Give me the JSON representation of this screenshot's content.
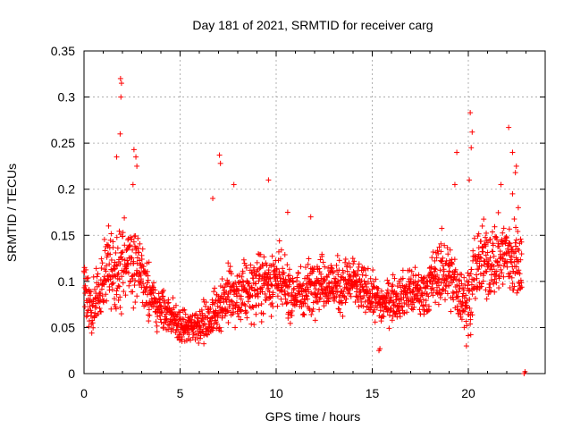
{
  "chart_data": {
    "type": "scatter",
    "title": "Day 181 of 2021, SRMTID for receiver carg",
    "xlabel": "GPS time / hours",
    "ylabel": "SRMTID / TECUs",
    "xlim": [
      0,
      24
    ],
    "ylim": [
      0,
      0.35
    ],
    "xticks": [
      0,
      5,
      10,
      15,
      20
    ],
    "xtick_labels": [
      "0",
      "5",
      "10",
      "15",
      "20"
    ],
    "yticks": [
      0,
      0.05,
      0.1,
      0.15,
      0.2,
      0.25,
      0.3,
      0.35
    ],
    "ytick_labels": [
      "0",
      "0.05",
      "0.1",
      "0.15",
      "0.2",
      "0.25",
      "0.3",
      "0.35"
    ],
    "grid": true,
    "marker": "plus",
    "color": "#ff0000",
    "trend": [
      [
        0.0,
        0.1,
        0.02
      ],
      [
        0.4,
        0.065,
        0.018
      ],
      [
        0.8,
        0.09,
        0.022
      ],
      [
        1.2,
        0.11,
        0.028
      ],
      [
        1.8,
        0.11,
        0.03
      ],
      [
        2.3,
        0.125,
        0.03
      ],
      [
        2.8,
        0.115,
        0.025
      ],
      [
        3.3,
        0.095,
        0.02
      ],
      [
        3.8,
        0.07,
        0.018
      ],
      [
        4.5,
        0.065,
        0.015
      ],
      [
        5.0,
        0.05,
        0.012
      ],
      [
        5.5,
        0.05,
        0.013
      ],
      [
        6.0,
        0.055,
        0.014
      ],
      [
        6.5,
        0.055,
        0.015
      ],
      [
        7.0,
        0.075,
        0.02
      ],
      [
        7.5,
        0.085,
        0.022
      ],
      [
        8.0,
        0.08,
        0.022
      ],
      [
        8.5,
        0.09,
        0.022
      ],
      [
        9.0,
        0.095,
        0.023
      ],
      [
        9.5,
        0.1,
        0.024
      ],
      [
        10.0,
        0.105,
        0.025
      ],
      [
        10.5,
        0.09,
        0.02
      ],
      [
        11.0,
        0.085,
        0.02
      ],
      [
        11.5,
        0.09,
        0.02
      ],
      [
        12.0,
        0.1,
        0.02
      ],
      [
        12.5,
        0.1,
        0.02
      ],
      [
        13.0,
        0.095,
        0.02
      ],
      [
        13.5,
        0.095,
        0.02
      ],
      [
        14.0,
        0.1,
        0.02
      ],
      [
        14.5,
        0.09,
        0.018
      ],
      [
        15.0,
        0.085,
        0.016
      ],
      [
        15.5,
        0.075,
        0.015
      ],
      [
        16.0,
        0.08,
        0.016
      ],
      [
        16.5,
        0.085,
        0.016
      ],
      [
        17.0,
        0.09,
        0.018
      ],
      [
        17.5,
        0.085,
        0.018
      ],
      [
        18.0,
        0.095,
        0.02
      ],
      [
        18.5,
        0.11,
        0.025
      ],
      [
        19.0,
        0.11,
        0.025
      ],
      [
        19.5,
        0.085,
        0.02
      ],
      [
        20.0,
        0.08,
        0.025
      ],
      [
        20.5,
        0.12,
        0.028
      ],
      [
        21.0,
        0.12,
        0.028
      ],
      [
        21.5,
        0.125,
        0.028
      ],
      [
        22.0,
        0.13,
        0.03
      ],
      [
        22.5,
        0.12,
        0.03
      ],
      [
        22.8,
        0.11,
        0.025
      ]
    ],
    "outliers": [
      [
        1.9,
        0.32
      ],
      [
        1.95,
        0.315
      ],
      [
        1.92,
        0.3
      ],
      [
        1.88,
        0.26
      ],
      [
        1.7,
        0.235
      ],
      [
        2.6,
        0.243
      ],
      [
        2.7,
        0.235
      ],
      [
        2.75,
        0.225
      ],
      [
        2.55,
        0.205
      ],
      [
        7.05,
        0.237
      ],
      [
        7.1,
        0.228
      ],
      [
        6.7,
        0.19
      ],
      [
        7.8,
        0.205
      ],
      [
        9.6,
        0.21
      ],
      [
        10.6,
        0.175
      ],
      [
        11.8,
        0.17
      ],
      [
        15.35,
        0.025
      ],
      [
        15.4,
        0.027
      ],
      [
        19.4,
        0.24
      ],
      [
        19.3,
        0.205
      ],
      [
        20.1,
        0.283
      ],
      [
        20.2,
        0.262
      ],
      [
        20.15,
        0.245
      ],
      [
        20.05,
        0.21
      ],
      [
        19.9,
        0.03
      ],
      [
        22.1,
        0.267
      ],
      [
        22.3,
        0.24
      ],
      [
        22.5,
        0.225
      ],
      [
        22.45,
        0.218
      ],
      [
        22.3,
        0.195
      ],
      [
        21.7,
        0.205
      ],
      [
        22.6,
        0.18
      ],
      [
        22.9,
        0.0
      ],
      [
        22.95,
        0.002
      ]
    ],
    "x_end": 22.8,
    "points_per_hour": 90
  }
}
